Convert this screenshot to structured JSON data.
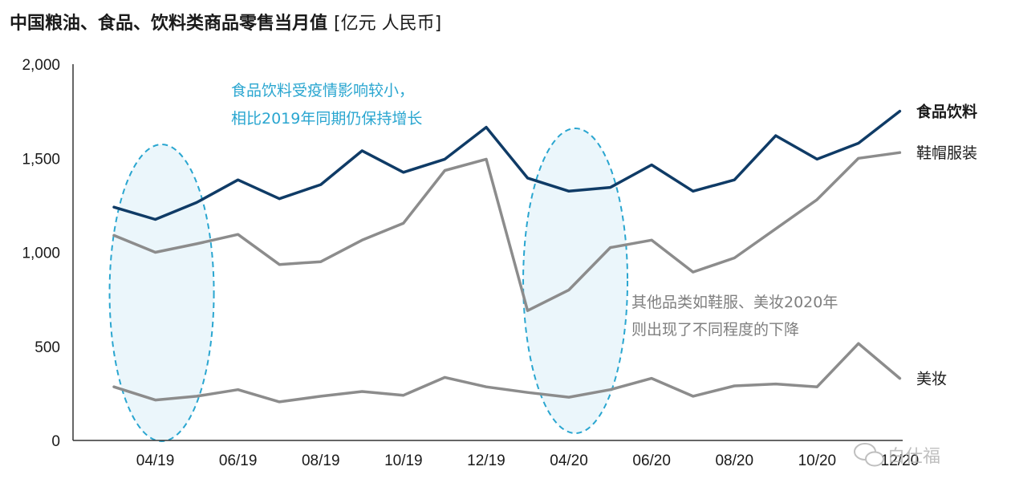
{
  "chart_data": {
    "type": "line",
    "title": "中国粮油、食品、饮料类商品零售当月值",
    "unit": "[亿元 人民币]",
    "x": [
      "03/19",
      "04/19",
      "05/19",
      "06/19",
      "07/19",
      "08/19",
      "09/19",
      "10/19",
      "11/19",
      "12/19",
      "03/20",
      "04/20",
      "05/20",
      "06/20",
      "07/20",
      "08/20",
      "09/20",
      "10/20",
      "11/20",
      "12/20"
    ],
    "x_tick_labels": [
      "04/19",
      "06/19",
      "08/19",
      "10/19",
      "12/19",
      "04/20",
      "06/20",
      "08/20",
      "10/20",
      "12/20"
    ],
    "y_ticks": [
      "0",
      "500",
      "1,000",
      "1,500",
      "2,000"
    ],
    "ylim": [
      0,
      2000
    ],
    "grid": false,
    "series": [
      {
        "name": "食品饮料",
        "color": "#0f3b66",
        "values": [
          1240,
          1175,
          1265,
          1385,
          1285,
          1360,
          1540,
          1425,
          1495,
          1665,
          1395,
          1325,
          1345,
          1465,
          1325,
          1385,
          1620,
          1495,
          1580,
          1750
        ]
      },
      {
        "name": "鞋帽服装",
        "color": "#8c8c8c",
        "values": [
          1090,
          1000,
          1045,
          1095,
          935,
          950,
          1065,
          1155,
          1435,
          1495,
          690,
          800,
          1025,
          1065,
          895,
          970,
          1125,
          1280,
          1500,
          1530
        ]
      },
      {
        "name": "美妆",
        "color": "#8c8c8c",
        "values": [
          285,
          215,
          235,
          270,
          205,
          235,
          260,
          240,
          335,
          285,
          255,
          230,
          270,
          330,
          235,
          290,
          300,
          285,
          515,
          330
        ]
      }
    ],
    "annotations": {
      "blue_line1": "食品饮料受疫情影响较小，",
      "blue_line2": "相比2019年同期仍保持增长",
      "gray_line1": "其他品类如鞋服、美妆2020年",
      "gray_line2": "则出现了不同程度的下降"
    },
    "highlight_color": "#2aa6d0"
  },
  "watermark": "白仕福"
}
